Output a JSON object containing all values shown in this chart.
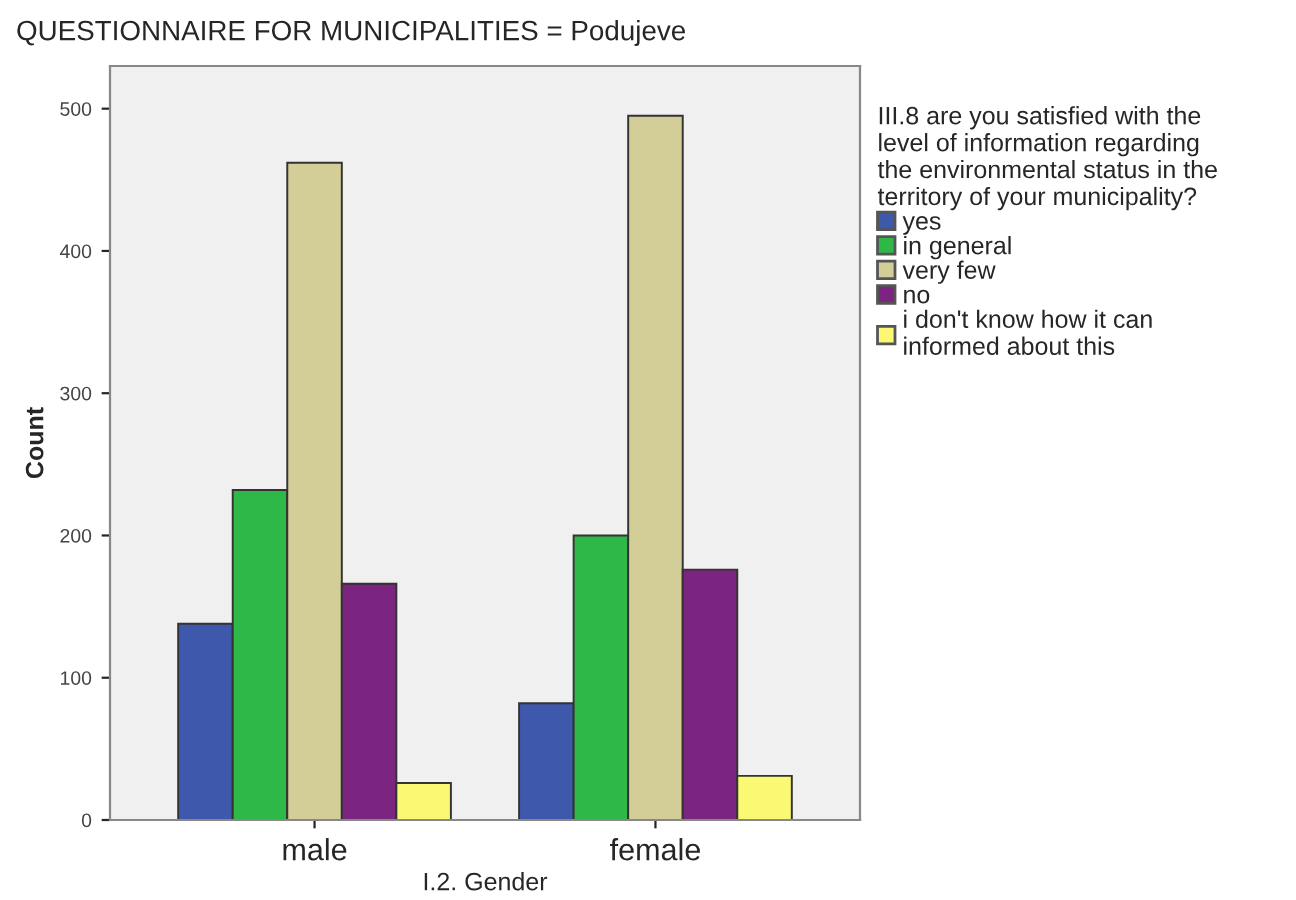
{
  "chart_data": {
    "type": "bar",
    "title": "QUESTIONNAIRE FOR MUNICIPALITIES = Podujeve",
    "xlabel": "I.2. Gender",
    "ylabel": "Count",
    "legend_title": "III.8 are you satisfied with the\nlevel of information regarding\nthe environmental status in the\nterritory of your municipality?",
    "categories": [
      "male",
      "female"
    ],
    "series": [
      {
        "name": "yes",
        "color": "#3e58ac",
        "values": [
          138,
          82
        ]
      },
      {
        "name": "in general",
        "color": "#2eb848",
        "values": [
          232,
          200
        ]
      },
      {
        "name": "very few",
        "color": "#d3ce97",
        "values": [
          462,
          495
        ]
      },
      {
        "name": "no",
        "color": "#7b2480",
        "values": [
          166,
          176
        ]
      },
      {
        "name": "i don't know how it can\ninformed about this",
        "color": "#fbf873",
        "values": [
          26,
          31
        ]
      }
    ],
    "ylim": [
      0,
      530
    ],
    "yticks": [
      0,
      100,
      200,
      300,
      400,
      500
    ],
    "grid": false,
    "legend": "right"
  }
}
